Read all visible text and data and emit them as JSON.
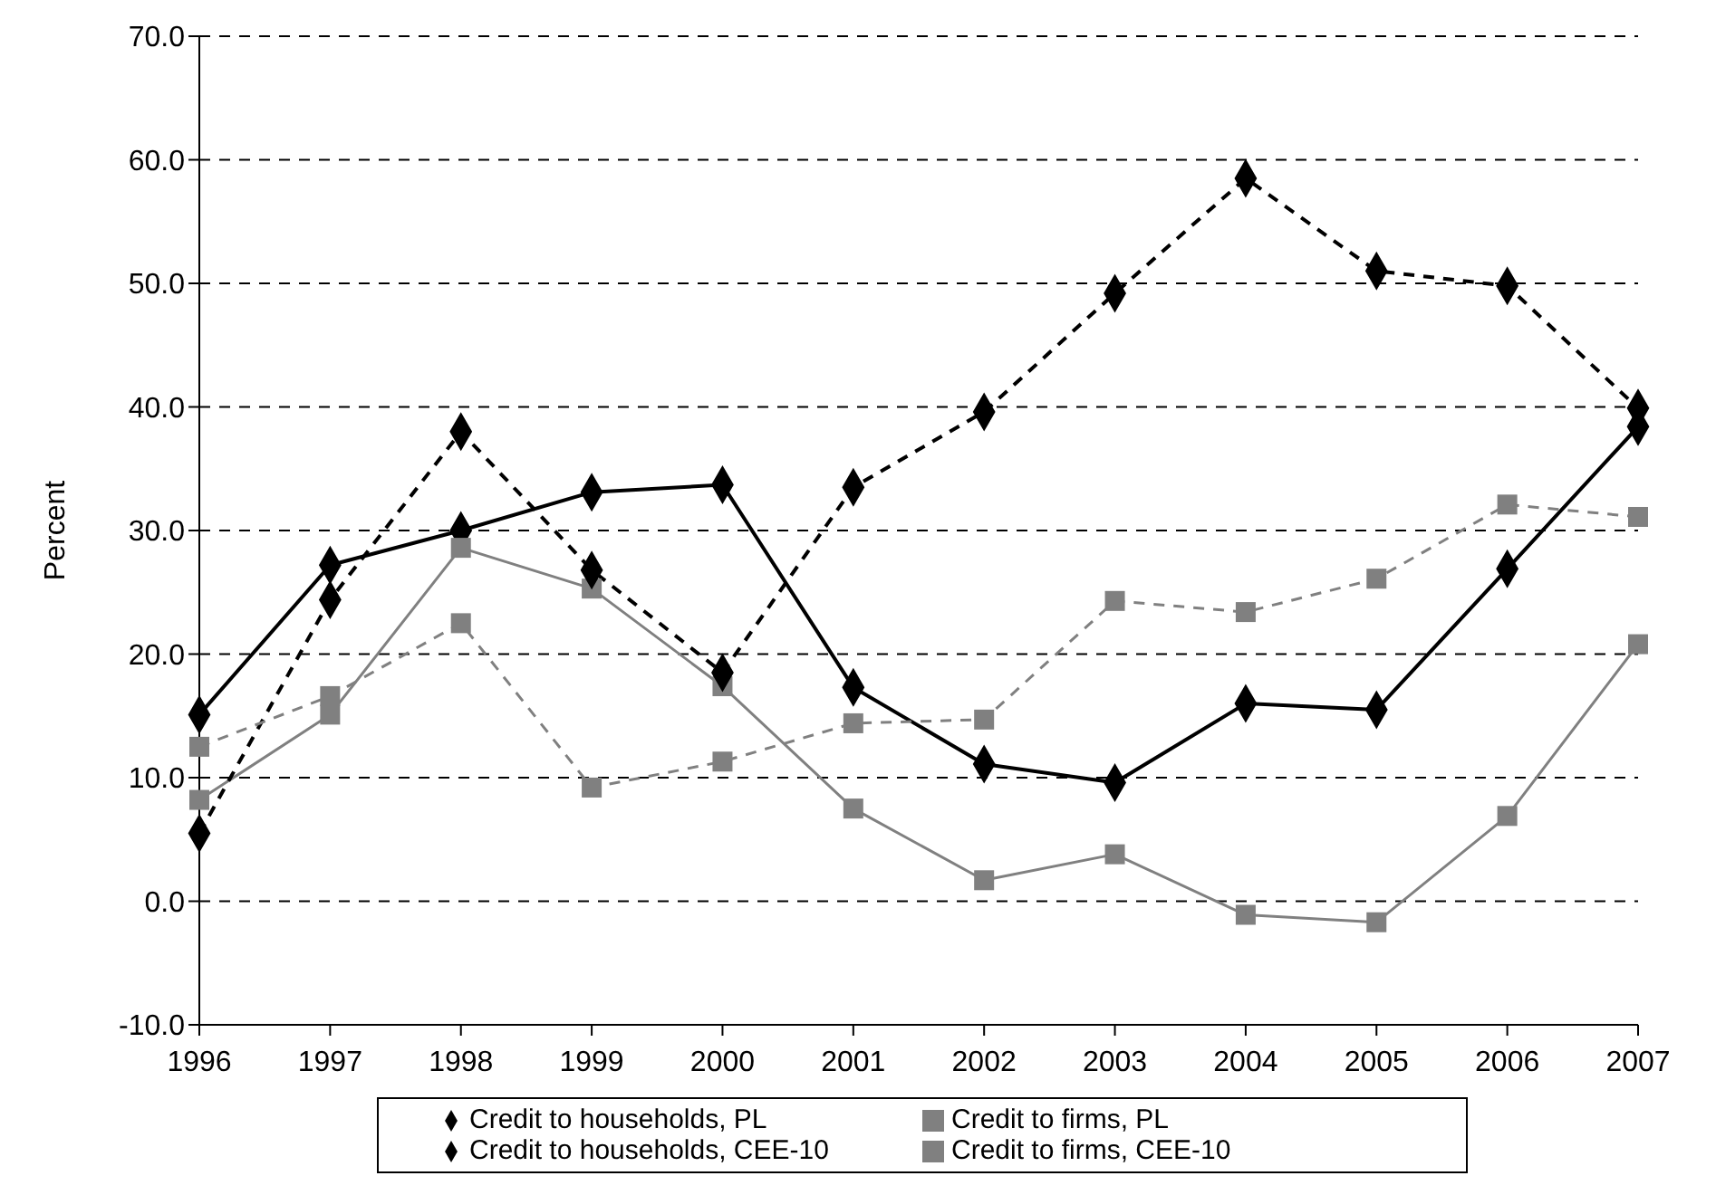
{
  "chart_data": {
    "type": "line",
    "ylabel": "Percent",
    "categories": [
      "1996",
      "1997",
      "1998",
      "1999",
      "2000",
      "2001",
      "2002",
      "2003",
      "2004",
      "2005",
      "2006",
      "2007"
    ],
    "ylim": [
      -10,
      70
    ],
    "yticks": [
      {
        "value": -10,
        "label": "-10.0"
      },
      {
        "value": 0,
        "label": "0.0"
      },
      {
        "value": 10,
        "label": "10.0"
      },
      {
        "value": 20,
        "label": "20.0"
      },
      {
        "value": 30,
        "label": "30.0"
      },
      {
        "value": 40,
        "label": "40.0"
      },
      {
        "value": 50,
        "label": "50.0"
      },
      {
        "value": 60,
        "label": "60.0"
      },
      {
        "value": 70,
        "label": "70.0"
      }
    ],
    "grid": "y",
    "legend": "bottom",
    "series": [
      {
        "name": "Credit to households, PL",
        "color": "#000000",
        "marker": "diamond",
        "line_style": "solid",
        "values": [
          15.1,
          27.2,
          30.0,
          33.1,
          33.7,
          17.3,
          11.1,
          9.6,
          16.0,
          15.5,
          26.9,
          38.4
        ]
      },
      {
        "name": "Credit to firms, PL",
        "color": "#808080",
        "marker": "square",
        "line_style": "solid",
        "values": [
          8.2,
          15.1,
          28.6,
          25.3,
          17.4,
          7.5,
          1.7,
          3.8,
          -1.1,
          -1.7,
          6.9,
          20.8
        ]
      },
      {
        "name": "Credit to households, CEE-10",
        "color": "#000000",
        "marker": "diamond",
        "line_style": "dashed",
        "values": [
          5.5,
          24.4,
          38.0,
          26.8,
          18.5,
          33.5,
          39.6,
          49.2,
          58.5,
          51.0,
          49.8,
          39.9
        ]
      },
      {
        "name": "Credit to firms, CEE-10",
        "color": "#808080",
        "marker": "square",
        "line_style": "dashed",
        "values": [
          12.5,
          16.6,
          22.5,
          9.2,
          11.3,
          14.4,
          14.7,
          24.3,
          23.4,
          26.1,
          32.1,
          31.1
        ]
      }
    ]
  }
}
